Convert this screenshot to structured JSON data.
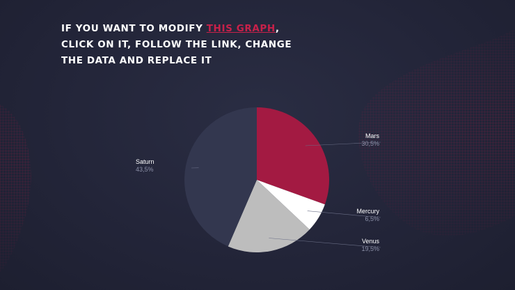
{
  "heading": {
    "before_link": "If you want to modify ",
    "link_text": "this graph",
    "after_link": ",",
    "line2": "click on it, follow the link, change",
    "line3": "the data and replace it"
  },
  "colors": {
    "link": "#c8214a",
    "mesh": "#c01e4a"
  },
  "chart_data": {
    "type": "pie",
    "start_angle_deg": 0,
    "direction": "clockwise",
    "legend": "outside-labels",
    "slices": [
      {
        "label": "Mars",
        "value": 30.5,
        "display": "30,5%",
        "color": "#a31a42"
      },
      {
        "label": "Mercury",
        "value": 6.5,
        "display": "6,5%",
        "color": "#ffffff"
      },
      {
        "label": "Venus",
        "value": 19.5,
        "display": "19,5%",
        "color": "#bdbdbd"
      },
      {
        "label": "Saturn",
        "value": 43.5,
        "display": "43,5%",
        "color": "#33374f"
      }
    ]
  }
}
